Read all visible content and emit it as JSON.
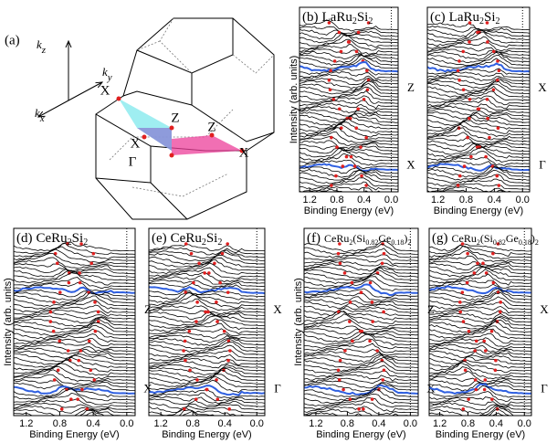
{
  "figure": {
    "panel_a": {
      "label": "(a)",
      "axes": [
        [
          "k",
          "z"
        ],
        [
          "k",
          "y"
        ],
        [
          "k",
          "x"
        ]
      ],
      "points": [
        "X",
        "Z",
        "Z",
        "X",
        "X",
        "Γ"
      ]
    },
    "y_axis_title": "Intensity (arb. units)",
    "x_axis_title": "Binding Energy (eV)",
    "xlim": [
      1.35,
      -0.1
    ],
    "xticks": [
      1.2,
      0.8,
      0.4,
      {
        "value": 0,
        "label": "0.0"
      }
    ],
    "panels": [
      {
        "label": "(b)",
        "formula": [
          "LaRu",
          "2",
          "Si",
          "2"
        ],
        "side": [
          "Z",
          "X"
        ]
      },
      {
        "label": "(c)",
        "formula": [
          "LaRu",
          "2",
          "Si",
          "2"
        ],
        "side": [
          "X",
          "Γ"
        ]
      },
      {
        "label": "(d)",
        "formula": [
          "CeRu",
          "2",
          "Si",
          "2"
        ],
        "side": [
          "Z",
          "X"
        ]
      },
      {
        "label": "(e)",
        "formula": [
          "CeRu",
          "2",
          "Si",
          "2"
        ],
        "side": [
          "X",
          "Γ"
        ]
      },
      {
        "label": "(f)",
        "formula": [
          "CeRu",
          "2",
          "(Si",
          "0.82",
          "Ge",
          "0.18",
          ")",
          "2"
        ],
        "side": [
          "Z",
          "X"
        ]
      },
      {
        "label": "(g)",
        "formula": [
          "CeRu",
          "2",
          "(Si",
          "0.82",
          "Ge",
          "0.18",
          ")",
          "2"
        ],
        "side": [
          "X",
          "Γ"
        ]
      }
    ]
  }
}
